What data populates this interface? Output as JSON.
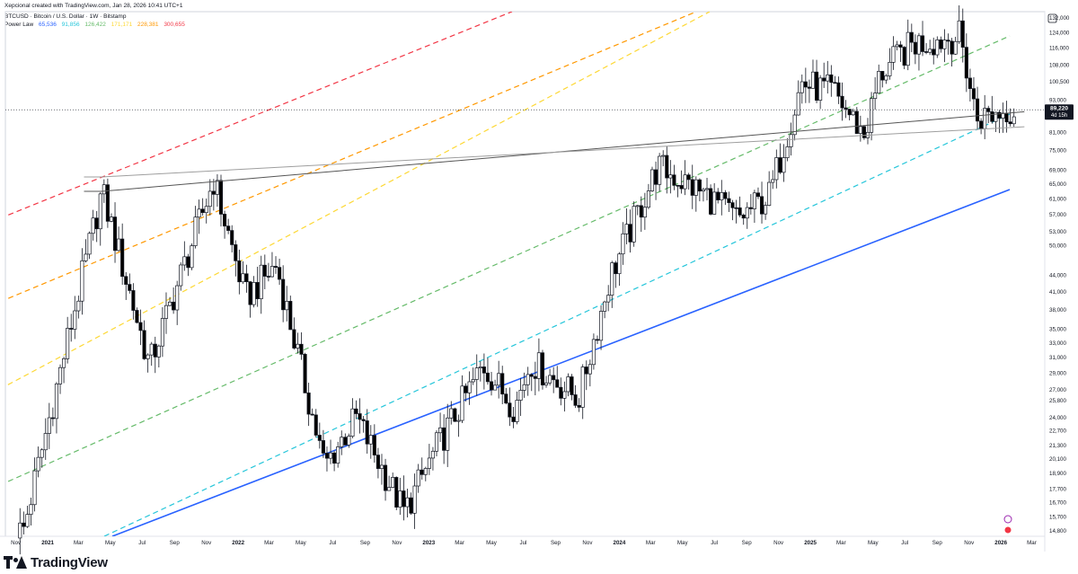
{
  "header": {
    "credit": "Xepcional created with TradingView.com, Jan 28, 2026 10:41 UTC+1",
    "symbol": "BTCUSD · Bitcoin / U.S. Dollar · 1W · Bitstamp"
  },
  "legend": {
    "label": "Power Law",
    "values": [
      {
        "text": "65,536",
        "color": "#2962ff"
      },
      {
        "text": "91,856",
        "color": "#26c6da"
      },
      {
        "text": "126,422",
        "color": "#66bb6a"
      },
      {
        "text": "171,171",
        "color": "#fdd835"
      },
      {
        "text": "228,381",
        "color": "#ff9800"
      },
      {
        "text": "300,655",
        "color": "#f23645"
      }
    ]
  },
  "footer": {
    "brand": "TradingView"
  },
  "chart_data": {
    "type": "candlestick",
    "symbol": "BTCUSD",
    "timeframe": "1W",
    "y_scale": "log",
    "ylim": [
      14800,
      132000
    ],
    "y_ticks": [
      "132,000",
      "124,000",
      "116,000",
      "108,000",
      "100,500",
      "93,000",
      "81,000",
      "75,000",
      "69,000",
      "65,000",
      "61,000",
      "57,000",
      "53,000",
      "50,000",
      "44,000",
      "41,000",
      "38,000",
      "35,000",
      "33,000",
      "31,000",
      "29,000",
      "27,000",
      "25,800",
      "24,000",
      "22,700",
      "21,300",
      "20,100",
      "18,900",
      "17,700",
      "16,700",
      "15,700",
      "14,800"
    ],
    "x_ticks": [
      "Nov",
      "2021",
      "Mar",
      "May",
      "Jul",
      "Sep",
      "Nov",
      "2022",
      "Mar",
      "May",
      "Jul",
      "Sep",
      "Nov",
      "2023",
      "Mar",
      "May",
      "Jul",
      "Sep",
      "Nov",
      "2024",
      "Mar",
      "May",
      "Jul",
      "Sep",
      "Nov",
      "2025",
      "Mar",
      "May",
      "Jul",
      "Sep",
      "Nov",
      "2026",
      "Mar"
    ],
    "x_bold": [
      "2021",
      "2022",
      "2023",
      "2024",
      "2025",
      "2026"
    ],
    "price": {
      "label": "89,220",
      "countdown": "4d 15h",
      "value": 89220
    },
    "grid": false,
    "colors": {
      "up": "#ffffff",
      "down": "#000000",
      "wick": "#131722",
      "price_tag": "#131722"
    },
    "anchors": [
      {
        "date": "2020-11",
        "price": 14800
      },
      {
        "date": "2021-04",
        "price": 63000
      },
      {
        "date": "2021-07",
        "price": 30000
      },
      {
        "date": "2021-11",
        "price": 66000
      },
      {
        "date": "2022-01",
        "price": 40000
      },
      {
        "date": "2022-03",
        "price": 46000
      },
      {
        "date": "2022-06",
        "price": 19500
      },
      {
        "date": "2022-08",
        "price": 24000
      },
      {
        "date": "2022-11",
        "price": 16000
      },
      {
        "date": "2023-01",
        "price": 21000
      },
      {
        "date": "2023-04",
        "price": 30000
      },
      {
        "date": "2023-06",
        "price": 25000
      },
      {
        "date": "2023-07",
        "price": 30500
      },
      {
        "date": "2023-10",
        "price": 26000
      },
      {
        "date": "2023-12",
        "price": 44000
      },
      {
        "date": "2024-03",
        "price": 70000
      },
      {
        "date": "2024-06",
        "price": 62000
      },
      {
        "date": "2024-08",
        "price": 56000
      },
      {
        "date": "2024-10",
        "price": 62000
      },
      {
        "date": "2024-12",
        "price": 100000
      },
      {
        "date": "2025-02",
        "price": 96000
      },
      {
        "date": "2025-04",
        "price": 80000
      },
      {
        "date": "2025-05",
        "price": 104000
      },
      {
        "date": "2025-07",
        "price": 118000
      },
      {
        "date": "2025-10",
        "price": 122000
      },
      {
        "date": "2025-11",
        "price": 86000
      },
      {
        "date": "2026-01",
        "price": 89220
      }
    ],
    "power_law_bands": [
      {
        "name": "65,536",
        "color": "#2962ff",
        "style": "solid"
      },
      {
        "name": "91,856",
        "color": "#26c6da",
        "style": "dashed"
      },
      {
        "name": "126,422",
        "color": "#66bb6a",
        "style": "dashed"
      },
      {
        "name": "171,171",
        "color": "#fdd835",
        "style": "dashed"
      },
      {
        "name": "228,381",
        "color": "#ff9800",
        "style": "dashed"
      },
      {
        "name": "300,655",
        "color": "#f23645",
        "style": "dashed"
      }
    ],
    "trendlines": [
      {
        "from": {
          "date": "2021-04",
          "price": 63000
        },
        "to": {
          "date": "2026-02",
          "price": 88500
        },
        "color": "#555555"
      },
      {
        "from": {
          "date": "2021-04",
          "price": 67000
        },
        "to": {
          "date": "2026-02",
          "price": 83000
        },
        "color": "#9e9e9e"
      }
    ]
  }
}
